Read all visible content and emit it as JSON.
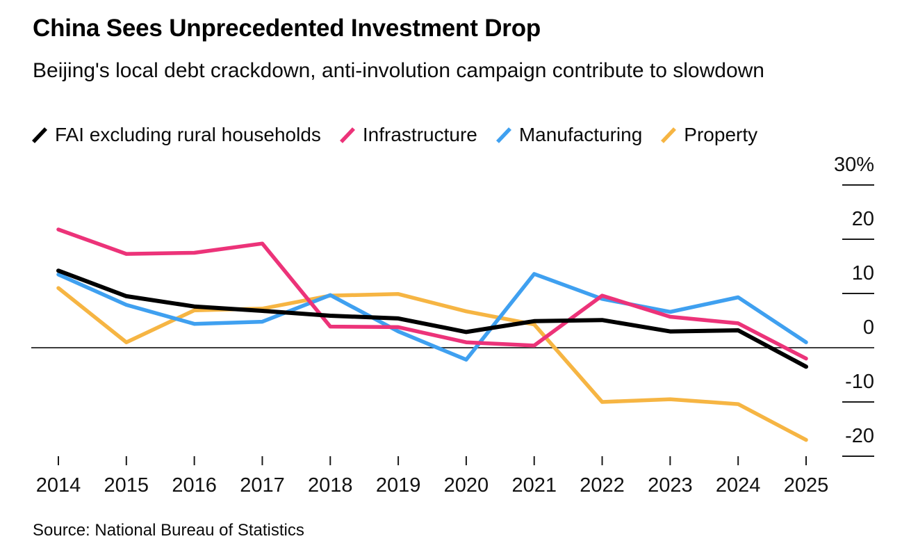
{
  "header": {
    "title": "China Sees Unprecedented Investment Drop",
    "subtitle": "Beijing's local debt crackdown, anti-involution campaign contribute to slowdown"
  },
  "legend": {
    "items": [
      {
        "label": "FAI excluding rural households",
        "color": "#000000"
      },
      {
        "label": "Infrastructure",
        "color": "#EC3379"
      },
      {
        "label": "Manufacturing",
        "color": "#3FA0F0"
      },
      {
        "label": "Property",
        "color": "#F6B543"
      }
    ]
  },
  "chart_data": {
    "type": "line",
    "title": "China Sees Unprecedented Investment Drop",
    "subtitle": "Beijing's local debt crackdown, anti-involution campaign contribute to slowdown",
    "x": [
      "2014",
      "2015",
      "2016",
      "2017",
      "2018",
      "2019",
      "2020",
      "2021",
      "2022",
      "2023",
      "2024",
      "2025"
    ],
    "series": [
      {
        "name": "FAI excluding rural households",
        "color": "#000000",
        "values": [
          14.2,
          9.5,
          7.6,
          6.8,
          5.9,
          5.4,
          2.9,
          4.9,
          5.1,
          3.0,
          3.2,
          -3.5
        ]
      },
      {
        "name": "Infrastructure",
        "color": "#EC3379",
        "values": [
          21.8,
          17.3,
          17.5,
          19.2,
          3.9,
          3.8,
          1.0,
          0.4,
          9.6,
          5.7,
          4.5,
          -2.0
        ]
      },
      {
        "name": "Manufacturing",
        "color": "#3FA0F0",
        "values": [
          13.5,
          7.9,
          4.4,
          4.8,
          9.7,
          3.0,
          -2.2,
          13.6,
          9.0,
          6.6,
          9.3,
          1.0
        ]
      },
      {
        "name": "Property",
        "color": "#F6B543",
        "values": [
          11.0,
          1.0,
          6.9,
          7.2,
          9.6,
          9.9,
          6.7,
          4.3,
          -10.0,
          -9.5,
          -10.4,
          -17.0
        ]
      }
    ],
    "y_axis": {
      "side": "right",
      "tick_values": [
        30,
        20,
        10,
        0,
        -10,
        -20
      ],
      "tick_labels": [
        "30%",
        "20",
        "10",
        "0",
        "-10",
        "-20"
      ],
      "ylim": [
        -22,
        31
      ],
      "unit": "percent year-on-year"
    },
    "grid": "zero-baseline-only",
    "legend_position": "top"
  },
  "source": "Source: National Bureau of Statistics"
}
